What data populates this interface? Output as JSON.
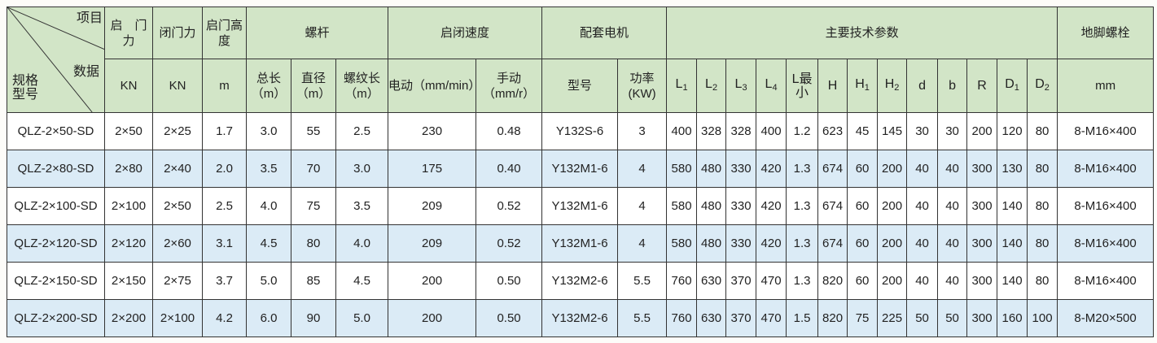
{
  "header": {
    "corner": {
      "item": "项目",
      "data": "数据",
      "model": "规格型号"
    },
    "open_force": "启　门力",
    "close_force": "闭门力",
    "open_height": "启门高度",
    "screw": "螺杆",
    "speed": "启闭速度",
    "motor": "配套电机",
    "params": "主要技术参数",
    "anchor": "地脚螺栓",
    "units": {
      "open_force": "KN",
      "close_force": "KN",
      "open_height": "m",
      "screw_total": "总长（m）",
      "screw_dia": "直径（m）",
      "screw_thread": "螺纹长（m）",
      "speed_electric": "电动（mm/min）",
      "speed_manual": "手动（mm/r）",
      "motor_model": "型号",
      "motor_power": "功率(KW)",
      "anchor": "mm"
    },
    "param_cols": [
      {
        "base": "L",
        "sub": "1"
      },
      {
        "base": "L",
        "sub": "2"
      },
      {
        "base": "L",
        "sub": "3"
      },
      {
        "base": "L",
        "sub": "4"
      },
      {
        "base": "L最小",
        "sub": ""
      },
      {
        "base": "H",
        "sub": ""
      },
      {
        "base": "H",
        "sub": "1"
      },
      {
        "base": "H",
        "sub": "2"
      },
      {
        "base": "d",
        "sub": ""
      },
      {
        "base": "b",
        "sub": ""
      },
      {
        "base": "R",
        "sub": ""
      },
      {
        "base": "D",
        "sub": "1"
      },
      {
        "base": "D",
        "sub": "2"
      }
    ]
  },
  "colors": {
    "header_bg": "#d2e5c7",
    "alt_row_bg": "#dbebf6",
    "row_bg": "#ffffff",
    "border": "#333333"
  },
  "rows": [
    [
      "QLZ-2×50-SD",
      "2×50",
      "2×25",
      "1.7",
      "3.0",
      "55",
      "2.5",
      "230",
      "0.48",
      "Y132S-6",
      "3",
      "400",
      "328",
      "328",
      "400",
      "1.2",
      "623",
      "45",
      "145",
      "30",
      "30",
      "200",
      "120",
      "80",
      "8-M16×400"
    ],
    [
      "QLZ-2×80-SD",
      "2×80",
      "2×40",
      "2.0",
      "3.5",
      "70",
      "3.0",
      "175",
      "0.40",
      "Y132M1-6",
      "4",
      "580",
      "480",
      "330",
      "420",
      "1.3",
      "674",
      "60",
      "200",
      "40",
      "40",
      "300",
      "130",
      "80",
      "8-M16×400"
    ],
    [
      "QLZ-2×100-SD",
      "2×100",
      "2×50",
      "2.5",
      "4.0",
      "75",
      "3.5",
      "209",
      "0.52",
      "Y132M1-6",
      "4",
      "580",
      "480",
      "330",
      "420",
      "1.3",
      "674",
      "60",
      "200",
      "40",
      "40",
      "300",
      "140",
      "80",
      "8-M16×400"
    ],
    [
      "QLZ-2×120-SD",
      "2×120",
      "2×60",
      "3.1",
      "4.5",
      "80",
      "4.0",
      "209",
      "0.52",
      "Y132M1-6",
      "4",
      "580",
      "480",
      "330",
      "420",
      "1.3",
      "674",
      "60",
      "200",
      "40",
      "40",
      "300",
      "140",
      "80",
      "8-M16×400"
    ],
    [
      "QLZ-2×150-SD",
      "2×150",
      "2×75",
      "3.7",
      "5.0",
      "85",
      "4.5",
      "200",
      "0.50",
      "Y132M2-6",
      "5.5",
      "760",
      "630",
      "370",
      "470",
      "1.3",
      "820",
      "60",
      "200",
      "40",
      "40",
      "300",
      "140",
      "80",
      "8-M16×400"
    ],
    [
      "QLZ-2×200-SD",
      "2×200",
      "2×100",
      "4.2",
      "6.0",
      "90",
      "5.0",
      "200",
      "0.50",
      "Y132M2-6",
      "5.5",
      "760",
      "630",
      "370",
      "470",
      "1.5",
      "820",
      "75",
      "225",
      "50",
      "50",
      "300",
      "160",
      "100",
      "8-M20×500"
    ]
  ]
}
